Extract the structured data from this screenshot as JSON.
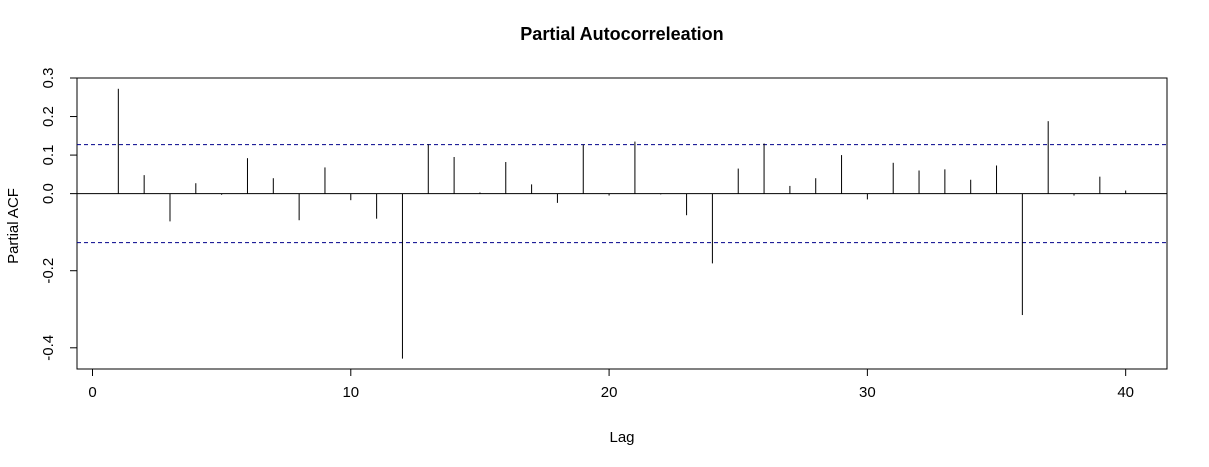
{
  "chart_data": {
    "type": "bar",
    "title": "Partial Autocorreleation",
    "xlabel": "Lag",
    "ylabel": "Partial ACF",
    "xlim": [
      -0.6,
      41.6
    ],
    "ylim": [
      -0.455,
      0.3
    ],
    "x_ticks": [
      0,
      10,
      20,
      30,
      40
    ],
    "y_ticks": [
      -0.4,
      -0.2,
      0.0,
      0.1,
      0.2,
      0.3
    ],
    "y_tick_labels": [
      "-0.4",
      "-0.2",
      "0.0",
      "0.1",
      "0.2",
      "0.3"
    ],
    "confidence_band": 0.127,
    "confidence_color": "#00008b",
    "grid": false,
    "legend": "none",
    "lags": [
      1,
      2,
      3,
      4,
      5,
      6,
      7,
      8,
      9,
      10,
      11,
      12,
      13,
      14,
      15,
      16,
      17,
      18,
      19,
      20,
      21,
      22,
      23,
      24,
      25,
      26,
      27,
      28,
      29,
      30,
      31,
      32,
      33,
      34,
      35,
      36,
      37,
      38,
      39,
      40
    ],
    "values": [
      0.272,
      0.048,
      -0.072,
      0.027,
      -0.003,
      0.092,
      0.04,
      -0.069,
      0.068,
      -0.017,
      -0.065,
      -0.428,
      0.128,
      0.095,
      0.003,
      0.082,
      0.024,
      -0.024,
      0.127,
      -0.005,
      0.135,
      -0.002,
      -0.056,
      -0.181,
      0.065,
      0.13,
      0.02,
      0.04,
      0.1,
      -0.015,
      0.08,
      0.06,
      0.063,
      0.036,
      0.073,
      -0.315,
      0.188,
      -0.005,
      0.044,
      0.008
    ]
  }
}
